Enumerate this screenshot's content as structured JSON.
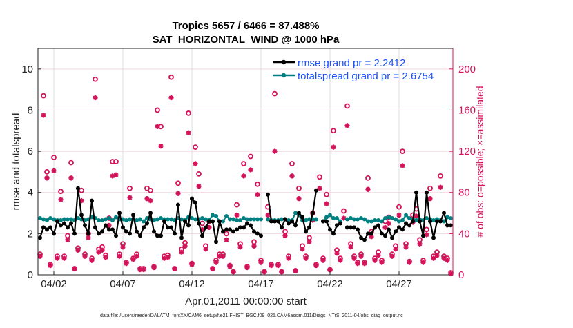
{
  "chart_data": {
    "type": "line",
    "title": [
      "Tropics 5657 / 6466 = 87.488%",
      "SAT_HORIZONTAL_WIND @ 1000 hPa"
    ],
    "xlabel": "Apr.01,2011 00:00:00 start",
    "ylabel": "rmse and totalspread",
    "ylabel_right": "# of obs: o=possible; ×=assimilated",
    "footer": "data file: /Users/raeder/DAI/ATM_forcXX/CAM6_setup/f.e21.FHIST_BGC.f09_025.CAM6assim.011/Diags_NTrS_2011-04/obs_diag_output.nc",
    "x_units": "days since Apr.01,2011 00:00",
    "xlim": [
      -0.15,
      29.9
    ],
    "ylim": [
      0,
      11
    ],
    "ylim_right": [
      0,
      220
    ],
    "x_ticks": [
      {
        "value": 1,
        "label": "04/02"
      },
      {
        "value": 6,
        "label": "04/07"
      },
      {
        "value": 11,
        "label": "04/12"
      },
      {
        "value": 16,
        "label": "04/17"
      },
      {
        "value": 21,
        "label": "04/22"
      },
      {
        "value": 26,
        "label": "04/27"
      }
    ],
    "y_ticks": [
      0,
      2,
      4,
      6,
      8,
      10
    ],
    "y_ticks_right": [
      0,
      40,
      80,
      120,
      160,
      200
    ],
    "grid": true,
    "legend_position": "top-right",
    "x_step_days": 0.25,
    "colors": {
      "rmse": "#000000",
      "spread": "#008080",
      "obs": "#d4145a",
      "legend_text": "#1a50ff",
      "right_axis": "#d4145a"
    },
    "series": [
      {
        "name": "rmse grand pr = 2.2412",
        "axis": "left",
        "values": [
          1.8,
          2.3,
          2.2,
          2.3,
          2.0,
          2.6,
          2.4,
          2.5,
          2.3,
          2.5,
          2.0,
          4.2,
          2.9,
          2.4,
          2.0,
          3.6,
          2.3,
          2.0,
          2.1,
          2.4,
          2.2,
          2.2,
          1.9,
          3.0,
          2.3,
          2.1,
          2.0,
          2.9,
          2.1,
          1.9,
          2.3,
          2.5,
          3.0,
          2.1,
          1.9,
          1.9,
          2.6,
          2.3,
          2.3,
          2.0,
          3.4,
          1.8,
          2.6,
          2.4,
          3.7,
          3.5,
          2.5,
          1.9,
          2.3,
          2.6,
          2.6,
          1.6,
          2.6,
          2.1,
          2.2,
          2.2,
          2.1,
          2.2,
          2.3,
          2.3,
          2.5,
          2.4,
          2.1,
          2.0,
          1.9,
          null,
          3.9,
          2.6,
          2.6,
          2.6,
          2.3,
          2.7,
          2.5,
          2.6,
          2.4,
          3.0,
          2.8,
          2.1,
          2.3,
          3.0,
          4.1,
          null,
          2.6,
          2.6,
          2.2,
          2.0,
          2.4,
          2.5,
          null,
          2.3,
          2.3,
          2.3,
          2.2,
          1.8,
          1.7,
          2.0,
          2.0,
          2.3,
          2.4,
          2.0,
          1.9,
          2.2,
          1.8,
          2.1,
          2.3,
          2.2,
          2.5,
          2.4,
          2.6,
          4.0,
          2.6,
          1.9,
          4.0,
          2.6,
          1.8,
          2.6,
          2.6,
          3.0,
          2.4,
          2.4
        ]
      },
      {
        "name": "totalspread grand pr = 2.6754",
        "axis": "left",
        "values": [
          2.75,
          2.7,
          2.65,
          2.75,
          2.7,
          2.65,
          2.65,
          2.7,
          2.7,
          2.7,
          2.65,
          2.75,
          2.7,
          2.65,
          2.7,
          2.8,
          2.75,
          2.65,
          2.65,
          2.7,
          2.75,
          2.65,
          2.8,
          2.7,
          2.7,
          2.65,
          2.7,
          2.7,
          2.65,
          2.7,
          2.6,
          2.75,
          2.7,
          2.65,
          2.7,
          2.75,
          2.7,
          2.7,
          2.7,
          2.65,
          2.75,
          2.7,
          2.65,
          2.8,
          2.75,
          2.7,
          2.7,
          2.75,
          2.7,
          2.65,
          2.9,
          2.85,
          2.6,
          2.6,
          2.85,
          2.7,
          2.7,
          2.65,
          2.65,
          2.75,
          2.7,
          2.7,
          2.7,
          2.7,
          2.7,
          null,
          2.7,
          2.65,
          2.65,
          2.65,
          2.7,
          2.7,
          2.65,
          2.65,
          3.0,
          2.9,
          2.65,
          2.65,
          2.7,
          2.7,
          2.7,
          null,
          2.6,
          2.8,
          2.9,
          2.75,
          2.75,
          2.6,
          null,
          2.7,
          2.75,
          2.7,
          2.7,
          2.75,
          2.7,
          2.6,
          2.6,
          2.65,
          2.65,
          2.6,
          2.75,
          2.8,
          2.75,
          2.7,
          2.6,
          2.65,
          2.9,
          2.75,
          2.7,
          2.65,
          2.7,
          2.65,
          2.75,
          2.7,
          2.65,
          2.7,
          2.65,
          2.6,
          2.8,
          2.75
        ]
      },
      {
        "name": "obs possible",
        "axis": "right",
        "marker": "o",
        "values": [
          20,
          174,
          100,
          10,
          114,
          18,
          81,
          18,
          38,
          109,
          6,
          26,
          82,
          20,
          40,
          16,
          190,
          25,
          27,
          19,
          55,
          110,
          110,
          20,
          30,
          12,
          84,
          16,
          20,
          6,
          6,
          84,
          82,
          8,
          160,
          144,
          18,
          19,
          192,
          6,
          89,
          25,
          31,
          157,
          11,
          124,
          98,
          50,
          28,
          52,
          6,
          14,
          20,
          20,
          40,
          9,
          3,
          68,
          30,
          108,
          8,
          115,
          32,
          88,
          14,
          3,
          66,
          10,
          176,
          10,
          3,
          42,
          18,
          108,
          4,
          84,
          28,
          18,
          36,
          60,
          10,
          95,
          16,
          78,
          5,
          140,
          24,
          16,
          62,
          164,
          30,
          18,
          12,
          20,
          12,
          94,
          42,
          16,
          22,
          14,
          52,
          56,
          20,
          28,
          66,
          120,
          30,
          13,
          58,
          64,
          34,
          14,
          44,
          84,
          18,
          22,
          96,
          18,
          16,
          2
        ]
      },
      {
        "name": "obs assimilated",
        "axis": "right",
        "marker": "*",
        "values": [
          18,
          155,
          94,
          9,
          101,
          16,
          73,
          16,
          34,
          94,
          6,
          24,
          72,
          18,
          36,
          14,
          172,
          22,
          24,
          17,
          48,
          96,
          97,
          18,
          27,
          11,
          75,
          15,
          18,
          5,
          5,
          74,
          72,
          7,
          144,
          125,
          16,
          17,
          172,
          6,
          79,
          22,
          28,
          138,
          10,
          108,
          86,
          44,
          25,
          46,
          6,
          12,
          18,
          18,
          34,
          8,
          3,
          58,
          27,
          96,
          7,
          102,
          28,
          78,
          12,
          3,
          58,
          9,
          120,
          9,
          3,
          38,
          16,
          96,
          4,
          74,
          25,
          16,
          32,
          53,
          9,
          84,
          14,
          69,
          5,
          124,
          21,
          14,
          55,
          145,
          27,
          16,
          11,
          18,
          11,
          83,
          37,
          14,
          19,
          12,
          46,
          50,
          18,
          25,
          58,
          106,
          27,
          12,
          51,
          57,
          30,
          12,
          39,
          74,
          16,
          19,
          85,
          16,
          14,
          1
        ]
      }
    ]
  }
}
